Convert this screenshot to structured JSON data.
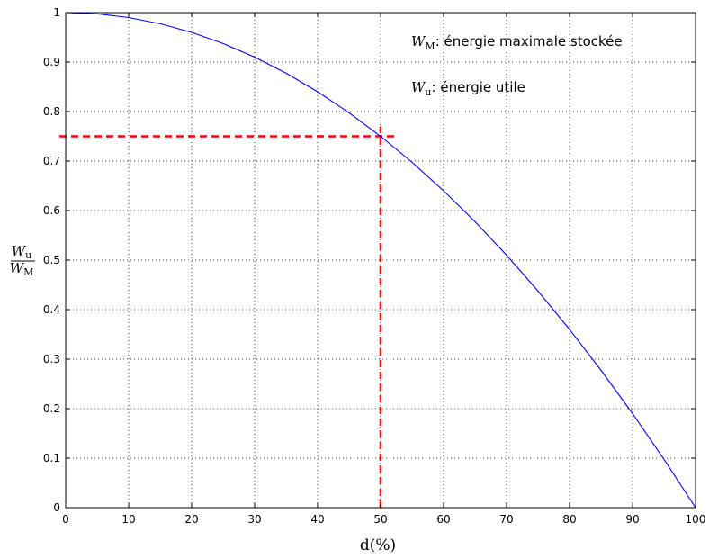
{
  "chart_data": {
    "type": "line",
    "title": "",
    "xlabel": "d(%)",
    "ylabel": {
      "numerator_var": "W",
      "numerator_sub": "u",
      "denominator_var": "W",
      "denominator_sub": "M"
    },
    "xlim": [
      0,
      100
    ],
    "ylim": [
      0,
      1
    ],
    "x_ticks": [
      0,
      10,
      20,
      30,
      40,
      50,
      60,
      70,
      80,
      90,
      100
    ],
    "y_ticks": [
      0,
      0.1,
      0.2,
      0.3,
      0.4,
      0.5,
      0.6,
      0.7,
      0.8,
      0.9,
      1
    ],
    "x_tick_labels": [
      "0",
      "10",
      "20",
      "30",
      "40",
      "50",
      "60",
      "70",
      "80",
      "90",
      "100"
    ],
    "y_tick_labels": [
      "0",
      "0.1",
      "0.2",
      "0.3",
      "0.4",
      "0.5",
      "0.6",
      "0.7",
      "0.8",
      "0.9",
      "1"
    ],
    "grid": true,
    "series": [
      {
        "color": "#0000ff",
        "x": [
          0,
          5,
          10,
          15,
          20,
          25,
          30,
          35,
          40,
          45,
          50,
          55,
          60,
          65,
          70,
          75,
          80,
          85,
          90,
          95,
          100
        ],
        "y": [
          1,
          0.9975,
          0.99,
          0.9775,
          0.96,
          0.9375,
          0.91,
          0.8775,
          0.84,
          0.7975,
          0.75,
          0.6975,
          0.64,
          0.5775,
          0.51,
          0.4375,
          0.36,
          0.2775,
          0.19,
          0.0975,
          0
        ]
      }
    ],
    "reference_lines": [
      {
        "orientation": "horizontal",
        "y": 0.75,
        "x_from": 0,
        "x_to": 52.5,
        "color": "#ff0000",
        "style": "dashed"
      },
      {
        "orientation": "vertical",
        "x": 50,
        "y_from": 0,
        "y_to": 0.77,
        "color": "#ff0000",
        "style": "dashed"
      }
    ],
    "annotations": [
      {
        "var": "W",
        "sub": "M",
        "text": ": énergie maximale stockée"
      },
      {
        "var": "W",
        "sub": "u",
        "text": ": énergie utile"
      }
    ]
  }
}
